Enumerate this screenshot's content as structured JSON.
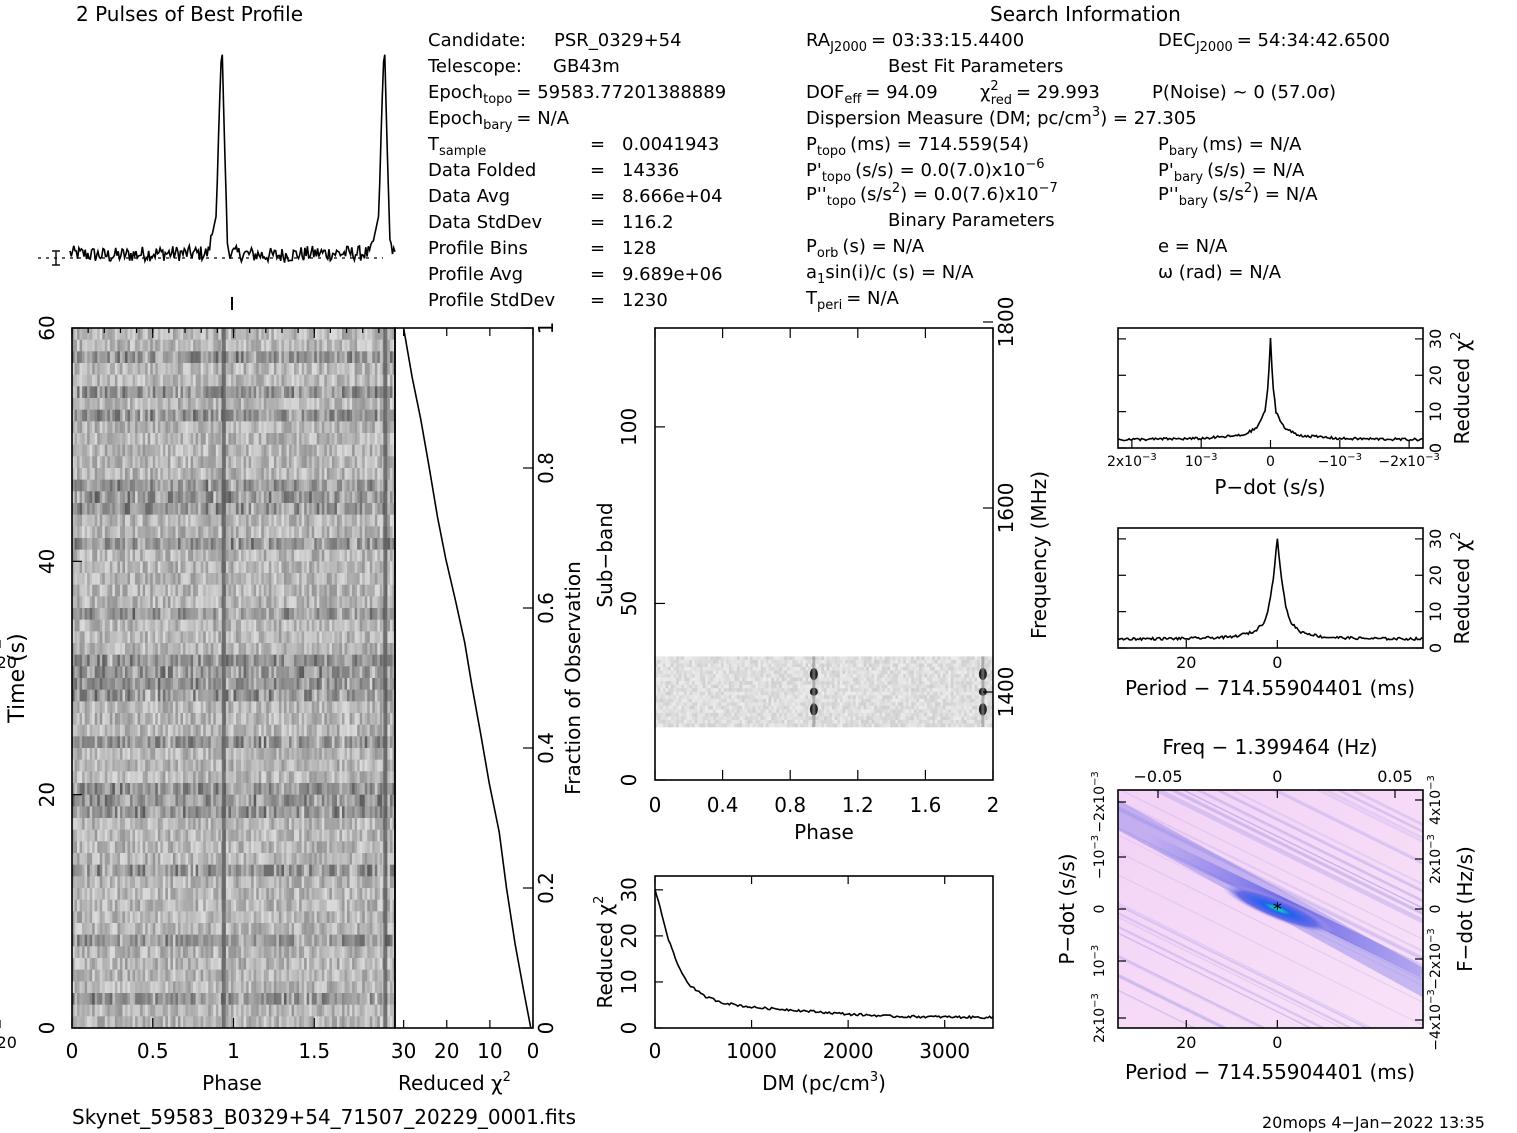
{
  "header": {
    "profile_title": "2 Pulses of Best Profile",
    "search_title": "Search Information",
    "best_fit_title": "Best Fit Parameters",
    "binary_title": "Binary Parameters"
  },
  "info": {
    "candidate_label": "Candidate:",
    "candidate_value": "PSR_0329+54",
    "telescope_label": "Telescope:",
    "telescope_value": "GB43m",
    "epoch_topo": "Epoch",
    "epoch_topo_sub": "topo",
    "epoch_topo_value": "= 59583.77201388889",
    "epoch_bary": "Epoch",
    "epoch_bary_sub": "bary",
    "epoch_bary_value": "= N/A",
    "rows": [
      {
        "label": "T",
        "sub": "sample",
        "eq": "=",
        "value": "0.0041943"
      },
      {
        "label": "Data Folded",
        "sub": "",
        "eq": "=",
        "value": "14336"
      },
      {
        "label": "Data Avg",
        "sub": "",
        "eq": "=",
        "value": "8.666e+04"
      },
      {
        "label": "Data StdDev",
        "sub": "",
        "eq": "=",
        "value": "116.2"
      },
      {
        "label": "Profile Bins",
        "sub": "",
        "eq": "=",
        "value": "128"
      },
      {
        "label": "Profile Avg",
        "sub": "",
        "eq": "=",
        "value": "9.689e+06"
      },
      {
        "label": "Profile StdDev",
        "sub": "",
        "eq": "=",
        "value": "1230"
      }
    ],
    "ra": "RA",
    "ra_sub": "J2000",
    "ra_value": "= 03:33:15.4400",
    "dec": "DEC",
    "dec_sub": "J2000",
    "dec_value": "= 54:34:42.6500",
    "dof": "DOF",
    "dof_sub": "eff",
    "dof_value": "= 94.09",
    "chi": "χ",
    "chi_sup": "2",
    "chi_sub": "red",
    "chi_value": "= 29.993",
    "pnoise": "P(Noise) ~ 0   (57.0σ)",
    "dm_line": "Dispersion Measure (DM; pc/cm",
    "dm_sup": "3",
    "dm_value": ") = 27.305",
    "ptopo": "P",
    "ptopo_sub": "topo",
    "ptopo_value": "(ms) =  714.559(54)",
    "pbary": "P",
    "pbary_sub": "bary",
    "pbary_value": "(ms) = N/A",
    "pdtopo": "P'",
    "pdtopo_sub": "topo",
    "pdtopo_value": "(s/s) = 0.0(7.0)x10",
    "pdtopo_sup": "−6",
    "pdbary": "P'",
    "pdbary_sub": "bary",
    "pdbary_value": "(s/s) = N/A",
    "pddtopo": "P''",
    "pddtopo_sub": "topo",
    "pddtopo_value1": "(s/s",
    "pddtopo_sup1": "2",
    "pddtopo_value2": ") = 0.0(7.6)x10",
    "pddtopo_sup2": "−7",
    "pddbary": "P''",
    "pddbary_sub": "bary",
    "pddbary_value1": "(s/s",
    "pddbary_sup1": "2",
    "pddbary_value2": ") = N/A",
    "porb": "P",
    "porb_sub": "orb",
    "porb_value": "(s) = N/A",
    "ecc": "e = N/A",
    "asini_a": "a",
    "asini_sub": "1",
    "asini_value": "sin(i)/c (s) = N/A",
    "omega": "ω (rad) = N/A",
    "tperi": "T",
    "tperi_sub": "peri",
    "tperi_value": "= N/A"
  },
  "footer": {
    "filename": "Skynet_59583_B0329+54_71507_20229_0001.fits",
    "stamp": "20mops  4−Jan−2022 13:35"
  },
  "colors": {
    "ink": "#000000",
    "ppdot_bg": "#f6d8f6",
    "ppdot_mid": "#5050e0",
    "ppdot_peak": "#20e0a0"
  },
  "chart_data": [
    {
      "id": "profile",
      "type": "line",
      "title": "2 Pulses of Best Profile",
      "x": [
        0.0,
        0.25,
        0.5,
        0.85,
        0.9,
        0.92,
        0.935,
        0.95,
        0.97,
        1.0,
        1.25,
        1.5,
        1.85,
        1.9,
        1.92,
        1.935,
        1.95,
        1.97,
        2.0
      ],
      "y": [
        0.03,
        0.02,
        0.03,
        0.03,
        0.2,
        0.7,
        1.0,
        0.55,
        0.05,
        0.03,
        0.02,
        0.03,
        0.03,
        0.2,
        0.7,
        1.0,
        0.55,
        0.05,
        0.03
      ],
      "xlim": [
        0,
        2
      ]
    },
    {
      "id": "time_phase",
      "type": "heatmap",
      "xlabel": "Phase",
      "ylabel": "Time (s)",
      "xticks": [
        "0",
        "0.5",
        "1",
        "1.5"
      ],
      "yticks": [
        "0",
        "20",
        "40",
        "60"
      ],
      "xlim": [
        0,
        2
      ],
      "ylim": [
        0,
        60
      ],
      "pulse_phases": [
        0.94,
        1.94
      ]
    },
    {
      "id": "time_chi",
      "type": "line",
      "xlabel": "Reduced",
      "xlabel_sup": "2",
      "xlabel_chi": "χ",
      "ylabel": "Fraction of Observation",
      "xticks": [
        "30",
        "20",
        "10",
        "0"
      ],
      "yticks": [
        "0",
        "0.2",
        "0.4",
        "0.6",
        "0.8",
        "1"
      ],
      "xlim": [
        32,
        0
      ],
      "ylim": [
        0,
        1
      ],
      "x": [
        0.5,
        2.0,
        4.0,
        6.0,
        8.0,
        10.0,
        12.0,
        14.0,
        16.0,
        18.0,
        20.0,
        22.0,
        24.0,
        26.0,
        28.0,
        30.0
      ],
      "y": [
        0.0,
        0.05,
        0.12,
        0.2,
        0.28,
        0.35,
        0.42,
        0.49,
        0.55,
        0.61,
        0.67,
        0.73,
        0.8,
        0.87,
        0.93,
        1.0
      ]
    },
    {
      "id": "subband",
      "type": "heatmap",
      "xlabel": "Phase",
      "ylabel": "Sub−band",
      "ylabel2": "Frequency (MHz)",
      "xticks": [
        "0",
        "0.4",
        "0.8",
        "1.2",
        "1.6",
        "2"
      ],
      "yticks": [
        "0",
        "50",
        "100"
      ],
      "y2ticks": [
        "1400",
        "1600",
        "1800"
      ],
      "xlim": [
        0,
        2
      ],
      "ylim": [
        0,
        128
      ],
      "band_rows": [
        15,
        35
      ],
      "pulse_phases": [
        0.94,
        1.94
      ]
    },
    {
      "id": "dm_chi",
      "type": "line",
      "xlabel": "DM (pc/cm",
      "xlabel_sup": "3",
      "xlabel_end": ")",
      "ylabel": "Reduced",
      "ylabel_chi": "χ",
      "ylabel_sup": "2",
      "xticks": [
        "0",
        "1000",
        "2000",
        "3000"
      ],
      "yticks": [
        "0",
        "10",
        "20",
        "30"
      ],
      "xlim": [
        0,
        3500
      ],
      "ylim": [
        0,
        33
      ],
      "x": [
        0,
        30,
        80,
        150,
        250,
        350,
        500,
        700,
        1000,
        1500,
        2000,
        2500,
        3000,
        3500
      ],
      "y": [
        30.0,
        28.0,
        24.0,
        18.5,
        13.0,
        9.5,
        7.0,
        5.5,
        4.5,
        3.8,
        3.0,
        2.5,
        2.4,
        2.3
      ]
    },
    {
      "id": "pdot_chi",
      "type": "line",
      "xlabel": "P−dot (s/s)",
      "ylabel": "Reduced",
      "ylabel_chi": "χ",
      "ylabel_sup": "2",
      "xticks": [
        "2x10",
        "10",
        "0",
        "−10",
        "−2x10"
      ],
      "xtick_sups": [
        "−3",
        "−3",
        "",
        "−3",
        "−3"
      ],
      "yticks": [
        "0",
        "10",
        "20",
        "30"
      ],
      "xlim": [
        0.0022,
        -0.0022
      ],
      "ylim": [
        0,
        33
      ],
      "x": [
        0.0022,
        0.001,
        0.0004,
        0.0002,
        8e-05,
        3e-05,
        0.0,
        -3e-05,
        -8e-05,
        -0.0002,
        -0.0004,
        -0.001,
        -0.0022
      ],
      "y": [
        2.3,
        2.6,
        3.5,
        5.5,
        10.0,
        18.0,
        30.0,
        18.0,
        10.0,
        5.5,
        3.5,
        2.6,
        2.3
      ]
    },
    {
      "id": "period_chi",
      "type": "line",
      "xlabel": "Period − 714.55904401 (ms)",
      "ylabel": "Reduced",
      "ylabel_chi": "χ",
      "ylabel_sup": "2",
      "xticks": [
        "20",
        "0",
        "−20"
      ],
      "yticks": [
        "0",
        "10",
        "20",
        "30"
      ],
      "xlim": [
        35,
        -32
      ],
      "ylim": [
        0,
        33
      ],
      "x": [
        35,
        20,
        10,
        5,
        3,
        2,
        1,
        0,
        -1,
        -2,
        -3,
        -5,
        -10,
        -20,
        -32
      ],
      "y": [
        2.5,
        2.6,
        3.0,
        4.5,
        7.0,
        10.5,
        18.0,
        30.0,
        18.0,
        10.5,
        7.0,
        4.5,
        3.0,
        2.6,
        2.5
      ]
    },
    {
      "id": "p_pdot",
      "type": "heatmap",
      "title": "Freq − 1.399464 (Hz)",
      "xlabel": "Period − 714.55904401 (ms)",
      "ylabel": "P−dot (s/s)",
      "ylabel2": "F−dot (Hz/s)",
      "xticks": [
        "20",
        "0",
        "−20"
      ],
      "top_xticks": [
        "−0.05",
        "0",
        "0.05"
      ],
      "yticks": [
        "2x10",
        "10",
        "0",
        "−10",
        "−2x10"
      ],
      "ytick_sups": [
        "−3",
        "−3",
        "",
        "−3",
        "−3"
      ],
      "y2ticks": [
        "−4x10",
        "−2x10",
        "0",
        "2x10",
        "4x10"
      ],
      "y2tick_sups": [
        "−3",
        "−3",
        "",
        "−3",
        "−3"
      ],
      "xlim": [
        35,
        -32
      ],
      "ylim": [
        -0.0022,
        0.0022
      ]
    }
  ]
}
